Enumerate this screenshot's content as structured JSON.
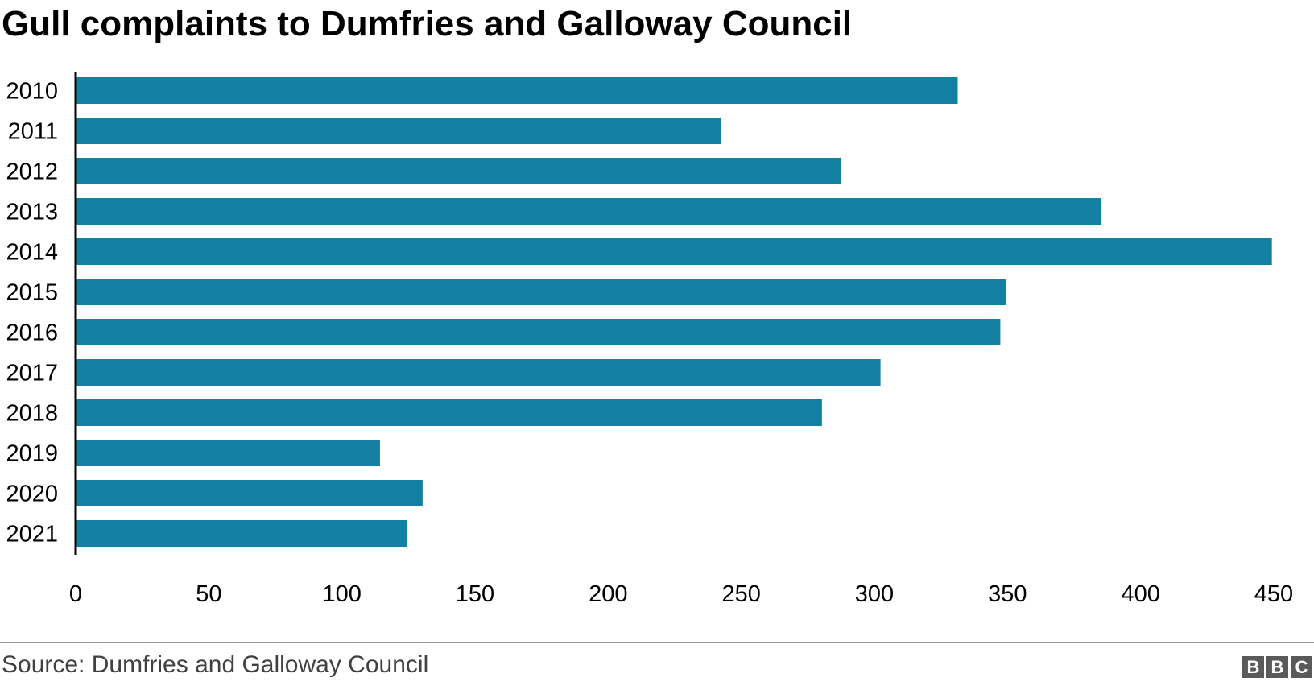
{
  "chart_data": {
    "type": "bar",
    "orientation": "horizontal",
    "title": "Gull complaints to Dumfries and Galloway Council",
    "categories": [
      "2010",
      "2011",
      "2012",
      "2013",
      "2014",
      "2015",
      "2016",
      "2017",
      "2018",
      "2019",
      "2020",
      "2021"
    ],
    "values": [
      331,
      242,
      287,
      385,
      449,
      349,
      347,
      302,
      280,
      114,
      130,
      124
    ],
    "xlim": [
      0,
      450
    ],
    "x_ticks": [
      "0",
      "50",
      "100",
      "150",
      "200",
      "250",
      "300",
      "350",
      "400",
      "450"
    ],
    "xlabel": "",
    "ylabel": "",
    "grid": false,
    "bar_color": "#1380a1"
  },
  "footer": {
    "source": "Source: Dumfries and Galloway Council",
    "logo_letters": [
      "B",
      "B",
      "C"
    ]
  },
  "colors": {
    "bar": "#1380a1",
    "axis": "#000000",
    "footer_rule": "#9a9a9a",
    "logo_bg": "#5a5a5a"
  }
}
